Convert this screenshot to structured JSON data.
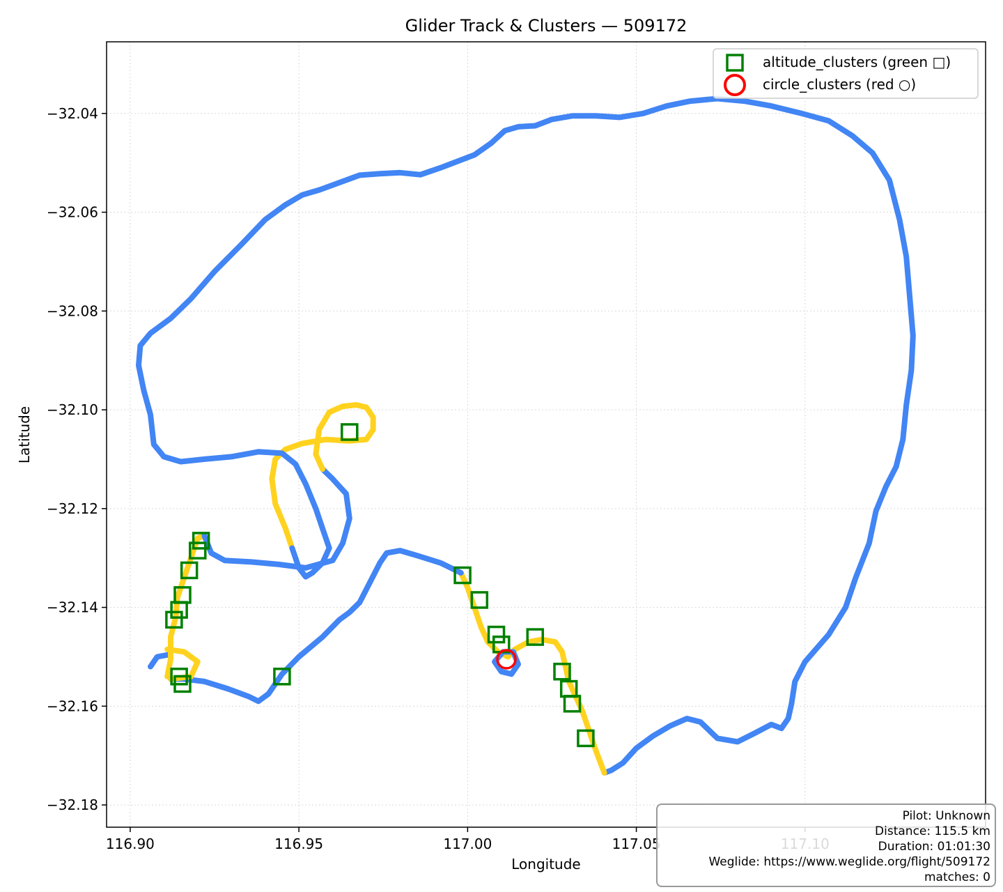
{
  "chart_data": {
    "type": "scatter",
    "title": "Glider Track & Clusters — 509172",
    "xlabel": "Longitude",
    "ylabel": "Latitude",
    "xlim": [
      116.893,
      117.1535
    ],
    "ylim": [
      -32.1845,
      -32.0255
    ],
    "xticks": [
      116.9,
      116.95,
      117.0,
      117.05,
      117.1
    ],
    "xtick_labels": [
      "116.90",
      "116.95",
      "117.00",
      "117.05",
      "117.10"
    ],
    "yticks": [
      -32.04,
      -32.06,
      -32.08,
      -32.1,
      -32.12,
      -32.14,
      -32.16,
      -32.18
    ],
    "ytick_labels": [
      "−32.04",
      "−32.06",
      "−32.08",
      "−32.10",
      "−32.12",
      "−32.14",
      "−32.16",
      "−32.18"
    ],
    "grid": true,
    "legend_position": "top-right",
    "legend": [
      {
        "label": "altitude_clusters (green □)",
        "marker": "square",
        "color": "#008000"
      },
      {
        "label": "circle_clusters (red ○)",
        "marker": "circle",
        "color": "#ff0000"
      }
    ],
    "colors": {
      "track_climb": "#ffd21f",
      "track_glide": "#4285f4",
      "altitude": "#008000",
      "circle": "#ff0000"
    },
    "track_segments": [
      {
        "color": "glide",
        "points": [
          [
            116.912,
            -32.1495
          ],
          [
            116.908,
            -32.15
          ],
          [
            116.906,
            -32.152
          ]
        ]
      },
      {
        "color": "climb",
        "points": [
          [
            116.911,
            -32.154
          ],
          [
            116.912,
            -32.1505
          ],
          [
            116.912,
            -32.146
          ],
          [
            116.9135,
            -32.142
          ],
          [
            116.914,
            -32.138
          ],
          [
            116.916,
            -32.134
          ],
          [
            116.918,
            -32.13
          ],
          [
            116.92,
            -32.126
          ],
          [
            116.922,
            -32.1255
          ]
        ]
      },
      {
        "color": "glide",
        "points": [
          [
            116.922,
            -32.1255
          ],
          [
            116.924,
            -32.129
          ],
          [
            116.928,
            -32.1305
          ],
          [
            116.936,
            -32.1308
          ],
          [
            116.944,
            -32.1313
          ],
          [
            116.952,
            -32.132
          ],
          [
            116.96,
            -32.1305
          ],
          [
            116.963,
            -32.127
          ],
          [
            116.965,
            -32.122
          ],
          [
            116.964,
            -32.117
          ],
          [
            116.96,
            -32.114
          ],
          [
            116.957,
            -32.112
          ]
        ]
      },
      {
        "color": "climb",
        "points": [
          [
            116.957,
            -32.112
          ],
          [
            116.955,
            -32.109
          ],
          [
            116.956,
            -32.104
          ],
          [
            116.959,
            -32.1005
          ],
          [
            116.963,
            -32.0993
          ],
          [
            116.967,
            -32.099
          ],
          [
            116.97,
            -32.0995
          ],
          [
            116.972,
            -32.1015
          ],
          [
            116.972,
            -32.104
          ],
          [
            116.97,
            -32.106
          ],
          [
            116.965,
            -32.1063
          ],
          [
            116.958,
            -32.106
          ],
          [
            116.951,
            -32.1068
          ],
          [
            116.946,
            -32.108
          ],
          [
            116.943,
            -32.11
          ],
          [
            116.942,
            -32.114
          ],
          [
            116.943,
            -32.119
          ],
          [
            116.946,
            -32.124
          ],
          [
            116.948,
            -32.128
          ]
        ]
      },
      {
        "color": "glide",
        "points": [
          [
            116.948,
            -32.128
          ],
          [
            116.95,
            -32.132
          ],
          [
            116.952,
            -32.1338
          ],
          [
            116.954,
            -32.133
          ],
          [
            116.957,
            -32.131
          ],
          [
            116.959,
            -32.128
          ],
          [
            116.957,
            -32.124
          ],
          [
            116.955,
            -32.12
          ],
          [
            116.952,
            -32.115
          ],
          [
            116.949,
            -32.111
          ],
          [
            116.945,
            -32.1088
          ],
          [
            116.938,
            -32.1085
          ],
          [
            116.93,
            -32.1095
          ],
          [
            116.922,
            -32.11
          ],
          [
            116.915,
            -32.1105
          ],
          [
            116.91,
            -32.1095
          ],
          [
            116.907,
            -32.107
          ],
          [
            116.906,
            -32.101
          ],
          [
            116.904,
            -32.096
          ],
          [
            116.9025,
            -32.091
          ],
          [
            116.903,
            -32.087
          ],
          [
            116.906,
            -32.0845
          ],
          [
            116.912,
            -32.0815
          ],
          [
            116.918,
            -32.0775
          ],
          [
            116.925,
            -32.072
          ],
          [
            116.933,
            -32.0665
          ],
          [
            116.94,
            -32.0615
          ],
          [
            116.946,
            -32.0585
          ],
          [
            116.951,
            -32.0565
          ],
          [
            116.956,
            -32.0555
          ],
          [
            116.962,
            -32.054
          ],
          [
            116.968,
            -32.0525
          ],
          [
            116.974,
            -32.0522
          ],
          [
            116.98,
            -32.052
          ],
          [
            116.986,
            -32.0524
          ],
          [
            116.992,
            -32.051
          ],
          [
            116.997,
            -32.0497
          ],
          [
            117.002,
            -32.0484
          ],
          [
            117.007,
            -32.046
          ],
          [
            117.011,
            -32.0435
          ],
          [
            117.015,
            -32.0427
          ],
          [
            117.02,
            -32.0425
          ],
          [
            117.025,
            -32.0412
          ],
          [
            117.031,
            -32.0405
          ],
          [
            117.038,
            -32.0405
          ],
          [
            117.045,
            -32.0408
          ],
          [
            117.052,
            -32.04
          ],
          [
            117.059,
            -32.0385
          ],
          [
            117.066,
            -32.0375
          ],
          [
            117.074,
            -32.037
          ],
          [
            117.082,
            -32.0375
          ],
          [
            117.09,
            -32.0385
          ],
          [
            117.099,
            -32.04
          ],
          [
            117.107,
            -32.0415
          ],
          [
            117.114,
            -32.0445
          ],
          [
            117.12,
            -32.048
          ],
          [
            117.125,
            -32.0535
          ],
          [
            117.128,
            -32.0615
          ],
          [
            117.13,
            -32.069
          ],
          [
            117.131,
            -32.077
          ],
          [
            117.132,
            -32.085
          ],
          [
            117.1315,
            -32.092
          ],
          [
            117.13,
            -32.099
          ],
          [
            117.129,
            -32.106
          ],
          [
            117.127,
            -32.1115
          ],
          [
            117.124,
            -32.1155
          ],
          [
            117.121,
            -32.1205
          ],
          [
            117.119,
            -32.127
          ],
          [
            117.115,
            -32.134
          ],
          [
            117.112,
            -32.14
          ],
          [
            117.107,
            -32.1455
          ],
          [
            117.1,
            -32.151
          ],
          [
            117.097,
            -32.155
          ],
          [
            117.096,
            -32.1595
          ],
          [
            117.095,
            -32.1625
          ],
          [
            117.093,
            -32.1645
          ],
          [
            117.09,
            -32.1637
          ],
          [
            117.085,
            -32.1655
          ],
          [
            117.08,
            -32.1672
          ],
          [
            117.074,
            -32.1665
          ],
          [
            117.069,
            -32.1632
          ],
          [
            117.065,
            -32.1625
          ],
          [
            117.06,
            -32.164
          ],
          [
            117.055,
            -32.166
          ],
          [
            117.05,
            -32.1685
          ],
          [
            117.046,
            -32.1715
          ],
          [
            117.0425,
            -32.173
          ],
          [
            117.0405,
            -32.1735
          ]
        ]
      },
      {
        "color": "climb",
        "points": [
          [
            117.0405,
            -32.1735
          ],
          [
            117.038,
            -32.169
          ],
          [
            117.036,
            -32.165
          ],
          [
            117.034,
            -32.161
          ],
          [
            117.032,
            -32.158
          ],
          [
            117.03,
            -32.155
          ],
          [
            117.029,
            -32.152
          ],
          [
            117.028,
            -32.149
          ],
          [
            117.026,
            -32.147
          ],
          [
            117.022,
            -32.1465
          ],
          [
            117.018,
            -32.147
          ],
          [
            117.014,
            -32.1485
          ],
          [
            117.012,
            -32.15
          ],
          [
            117.009,
            -32.149
          ],
          [
            117.006,
            -32.147
          ],
          [
            117.004,
            -32.144
          ],
          [
            117.002,
            -32.14
          ],
          [
            117.0,
            -32.136
          ],
          [
            116.998,
            -32.133
          ]
        ]
      },
      {
        "color": "glide",
        "points": [
          [
            116.998,
            -32.133
          ],
          [
            116.992,
            -32.131
          ],
          [
            116.985,
            -32.1295
          ],
          [
            116.98,
            -32.1285
          ],
          [
            116.976,
            -32.129
          ],
          [
            116.974,
            -32.131
          ],
          [
            116.971,
            -32.135
          ],
          [
            116.968,
            -32.139
          ],
          [
            116.965,
            -32.141
          ],
          [
            116.962,
            -32.1425
          ],
          [
            116.957,
            -32.146
          ],
          [
            116.95,
            -32.15
          ],
          [
            116.945,
            -32.1535
          ],
          [
            116.941,
            -32.1575
          ],
          [
            116.938,
            -32.159
          ],
          [
            116.935,
            -32.158
          ],
          [
            116.929,
            -32.1565
          ],
          [
            116.922,
            -32.155
          ],
          [
            116.916,
            -32.1545
          ],
          [
            116.912,
            -32.1545
          ]
        ]
      },
      {
        "color": "climb",
        "points": [
          [
            116.912,
            -32.1545
          ],
          [
            116.918,
            -32.154
          ],
          [
            116.92,
            -32.151
          ],
          [
            116.916,
            -32.149
          ],
          [
            116.911,
            -32.1485
          ]
        ]
      },
      {
        "color": "glide",
        "points": [
          [
            117.008,
            -32.151
          ],
          [
            117.01,
            -32.153
          ],
          [
            117.013,
            -32.1535
          ],
          [
            117.015,
            -32.1515
          ],
          [
            117.0135,
            -32.149
          ],
          [
            117.0105,
            -32.149
          ],
          [
            117.008,
            -32.151
          ]
        ]
      }
    ],
    "altitude_clusters": [
      [
        116.965,
        -32.1045
      ],
      [
        116.921,
        -32.1265
      ],
      [
        116.92,
        -32.1285
      ],
      [
        116.9175,
        -32.1325
      ],
      [
        116.9155,
        -32.1375
      ],
      [
        116.9145,
        -32.1405
      ],
      [
        116.913,
        -32.1425
      ],
      [
        116.9145,
        -32.154
      ],
      [
        116.9155,
        -32.1555
      ],
      [
        116.945,
        -32.154
      ],
      [
        116.9985,
        -32.1335
      ],
      [
        117.0035,
        -32.1385
      ],
      [
        117.0085,
        -32.1455
      ],
      [
        117.01,
        -32.1475
      ],
      [
        117.02,
        -32.146
      ],
      [
        117.028,
        -32.153
      ],
      [
        117.03,
        -32.1565
      ],
      [
        117.031,
        -32.1595
      ],
      [
        117.035,
        -32.1665
      ]
    ],
    "circle_clusters": [
      [
        117.0115,
        -32.1505
      ]
    ]
  },
  "info": {
    "pilot": "Pilot: Unknown",
    "distance": "Distance: 115.5 km",
    "duration": "Duration: 01:01:30",
    "weglide": "Weglide: https://www.weglide.org/flight/509172",
    "matches": "matches: 0"
  }
}
